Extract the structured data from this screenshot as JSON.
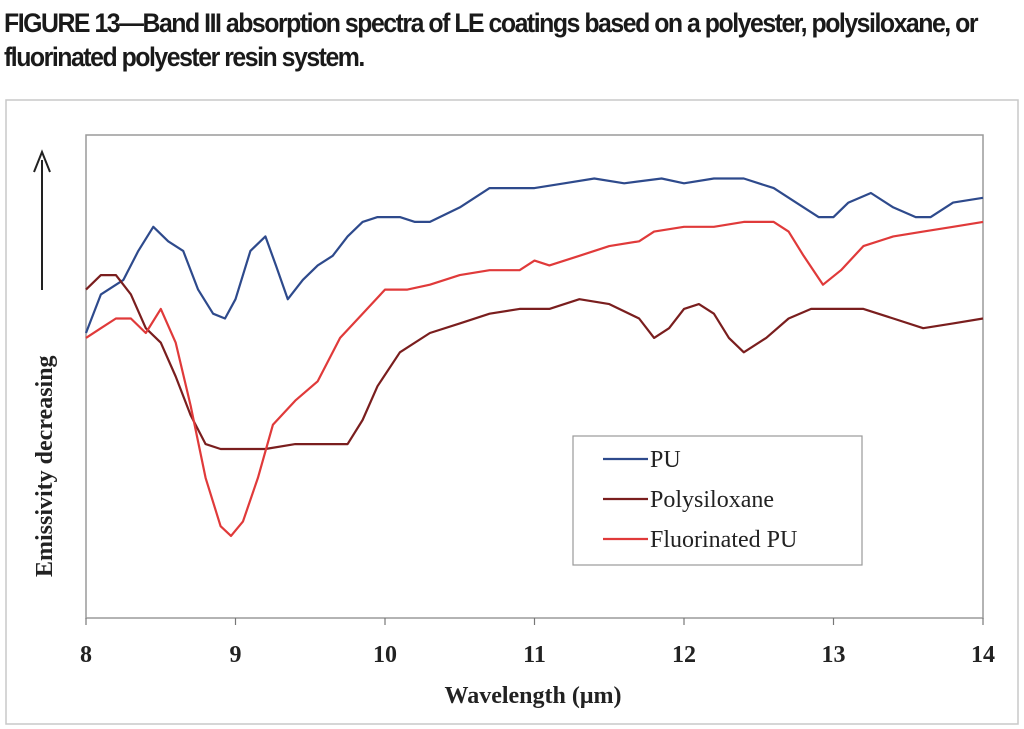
{
  "caption": {
    "line1": "FIGURE 13—Band III absorption spectra of LE coatings based on a polyester, polysiloxane, or",
    "line2": "fluorinated polyester resin system."
  },
  "chart_data": {
    "type": "line",
    "xlabel": "Wavelength (μm)",
    "ylabel": "Emissivity decreasing",
    "xlim": [
      8,
      14
    ],
    "ylim": [
      0,
      1
    ],
    "x_ticks": [
      8,
      9,
      10,
      11,
      12,
      13,
      14
    ],
    "grid": false,
    "legend_position": "lower-right",
    "series": [
      {
        "name": "PU",
        "color": "#2e4a8c",
        "points": [
          [
            8.0,
            0.59
          ],
          [
            8.1,
            0.67
          ],
          [
            8.25,
            0.7
          ],
          [
            8.35,
            0.76
          ],
          [
            8.45,
            0.81
          ],
          [
            8.55,
            0.78
          ],
          [
            8.65,
            0.76
          ],
          [
            8.75,
            0.68
          ],
          [
            8.85,
            0.63
          ],
          [
            8.93,
            0.62
          ],
          [
            9.0,
            0.66
          ],
          [
            9.1,
            0.76
          ],
          [
            9.2,
            0.79
          ],
          [
            9.27,
            0.73
          ],
          [
            9.35,
            0.66
          ],
          [
            9.45,
            0.7
          ],
          [
            9.55,
            0.73
          ],
          [
            9.65,
            0.75
          ],
          [
            9.75,
            0.79
          ],
          [
            9.85,
            0.82
          ],
          [
            9.95,
            0.83
          ],
          [
            10.1,
            0.83
          ],
          [
            10.2,
            0.82
          ],
          [
            10.3,
            0.82
          ],
          [
            10.5,
            0.85
          ],
          [
            10.7,
            0.89
          ],
          [
            10.9,
            0.89
          ],
          [
            11.0,
            0.89
          ],
          [
            11.2,
            0.9
          ],
          [
            11.4,
            0.91
          ],
          [
            11.6,
            0.9
          ],
          [
            11.85,
            0.91
          ],
          [
            12.0,
            0.9
          ],
          [
            12.2,
            0.91
          ],
          [
            12.4,
            0.91
          ],
          [
            12.6,
            0.89
          ],
          [
            12.75,
            0.86
          ],
          [
            12.9,
            0.83
          ],
          [
            13.0,
            0.83
          ],
          [
            13.1,
            0.86
          ],
          [
            13.25,
            0.88
          ],
          [
            13.4,
            0.85
          ],
          [
            13.55,
            0.83
          ],
          [
            13.65,
            0.83
          ],
          [
            13.8,
            0.86
          ],
          [
            14.0,
            0.87
          ]
        ]
      },
      {
        "name": "Polysiloxane",
        "color": "#7a1e1e",
        "points": [
          [
            8.0,
            0.68
          ],
          [
            8.1,
            0.71
          ],
          [
            8.2,
            0.71
          ],
          [
            8.3,
            0.67
          ],
          [
            8.4,
            0.6
          ],
          [
            8.5,
            0.57
          ],
          [
            8.6,
            0.5
          ],
          [
            8.7,
            0.42
          ],
          [
            8.8,
            0.36
          ],
          [
            8.9,
            0.35
          ],
          [
            9.0,
            0.35
          ],
          [
            9.2,
            0.35
          ],
          [
            9.4,
            0.36
          ],
          [
            9.6,
            0.36
          ],
          [
            9.75,
            0.36
          ],
          [
            9.85,
            0.41
          ],
          [
            9.95,
            0.48
          ],
          [
            10.1,
            0.55
          ],
          [
            10.3,
            0.59
          ],
          [
            10.5,
            0.61
          ],
          [
            10.7,
            0.63
          ],
          [
            10.9,
            0.64
          ],
          [
            11.1,
            0.64
          ],
          [
            11.3,
            0.66
          ],
          [
            11.5,
            0.65
          ],
          [
            11.7,
            0.62
          ],
          [
            11.8,
            0.58
          ],
          [
            11.9,
            0.6
          ],
          [
            12.0,
            0.64
          ],
          [
            12.1,
            0.65
          ],
          [
            12.2,
            0.63
          ],
          [
            12.3,
            0.58
          ],
          [
            12.4,
            0.55
          ],
          [
            12.55,
            0.58
          ],
          [
            12.7,
            0.62
          ],
          [
            12.85,
            0.64
          ],
          [
            13.0,
            0.64
          ],
          [
            13.2,
            0.64
          ],
          [
            13.4,
            0.62
          ],
          [
            13.6,
            0.6
          ],
          [
            13.8,
            0.61
          ],
          [
            14.0,
            0.62
          ]
        ]
      },
      {
        "name": "Fluorinated PU",
        "color": "#e03a3a",
        "points": [
          [
            8.0,
            0.58
          ],
          [
            8.1,
            0.6
          ],
          [
            8.2,
            0.62
          ],
          [
            8.3,
            0.62
          ],
          [
            8.4,
            0.59
          ],
          [
            8.5,
            0.64
          ],
          [
            8.6,
            0.57
          ],
          [
            8.7,
            0.44
          ],
          [
            8.8,
            0.29
          ],
          [
            8.9,
            0.19
          ],
          [
            8.97,
            0.17
          ],
          [
            9.05,
            0.2
          ],
          [
            9.15,
            0.29
          ],
          [
            9.25,
            0.4
          ],
          [
            9.4,
            0.45
          ],
          [
            9.55,
            0.49
          ],
          [
            9.7,
            0.58
          ],
          [
            9.85,
            0.63
          ],
          [
            10.0,
            0.68
          ],
          [
            10.15,
            0.68
          ],
          [
            10.3,
            0.69
          ],
          [
            10.5,
            0.71
          ],
          [
            10.7,
            0.72
          ],
          [
            10.9,
            0.72
          ],
          [
            11.0,
            0.74
          ],
          [
            11.1,
            0.73
          ],
          [
            11.3,
            0.75
          ],
          [
            11.5,
            0.77
          ],
          [
            11.7,
            0.78
          ],
          [
            11.8,
            0.8
          ],
          [
            12.0,
            0.81
          ],
          [
            12.2,
            0.81
          ],
          [
            12.4,
            0.82
          ],
          [
            12.6,
            0.82
          ],
          [
            12.7,
            0.8
          ],
          [
            12.8,
            0.75
          ],
          [
            12.93,
            0.69
          ],
          [
            13.05,
            0.72
          ],
          [
            13.2,
            0.77
          ],
          [
            13.4,
            0.79
          ],
          [
            13.6,
            0.8
          ],
          [
            13.8,
            0.81
          ],
          [
            14.0,
            0.82
          ]
        ]
      }
    ]
  }
}
